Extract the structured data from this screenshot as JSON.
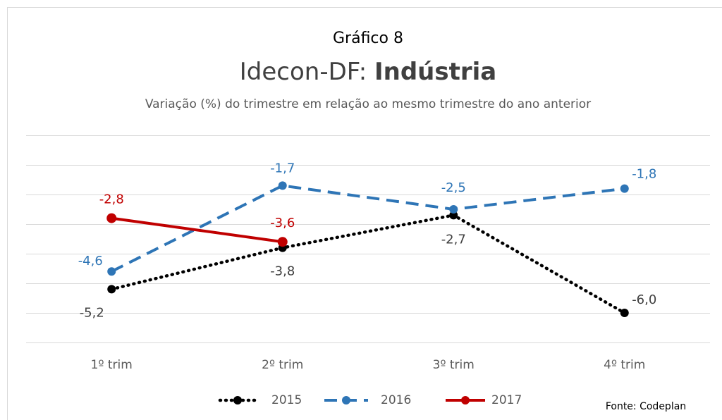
{
  "chart_data": {
    "type": "line",
    "supertitle": "Gráfico 8",
    "title": "Idecon-DF:",
    "title_bold": "Indústria",
    "subtitle": "Variação (%) do trimestre em relação ao mesmo trimestre do ano anterior",
    "source": "Fonte: Codeplan",
    "categories": [
      "1º trim",
      "2º trim",
      "3º trim",
      "4º trim"
    ],
    "series": [
      {
        "name": "2015",
        "color": "#000000",
        "dash": "dotted",
        "values": [
          -5.2,
          -3.8,
          -2.7,
          -6.0
        ],
        "value_labels": [
          "-5,2",
          "-3,8",
          "-2,7",
          "-6,0"
        ]
      },
      {
        "name": "2016",
        "color": "#2e75b6",
        "dash": "dashed",
        "values": [
          -4.6,
          -1.7,
          -2.5,
          -1.8
        ],
        "value_labels": [
          "-4,6",
          "-1,7",
          "-2,5",
          "-1,8"
        ]
      },
      {
        "name": "2017",
        "color": "#c00000",
        "dash": "solid",
        "values": [
          -2.8,
          -3.6,
          null,
          null
        ],
        "value_labels": [
          "-2,8",
          "-3,6",
          null,
          null
        ]
      }
    ],
    "ylim": [
      -7,
      0
    ],
    "yticks": [
      -7,
      -6,
      -5,
      -4,
      -3,
      -2,
      -1,
      0
    ],
    "grid": true,
    "legend": "bottom"
  }
}
